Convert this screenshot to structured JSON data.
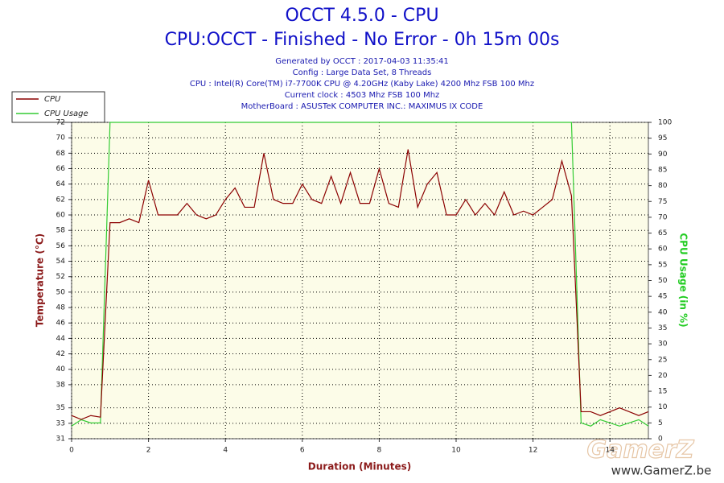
{
  "chart_data": {
    "type": "line",
    "title": "OCCT 4.5.0 - CPU",
    "subtitle": "CPU:OCCT - Finished - No Error - 0h 15m 00s",
    "info": [
      "Generated by OCCT : 2017-04-03 11:35:41",
      "Config : Large Data Set, 8 Threads",
      "CPU : Intel(R) Core(TM) i7-7700K CPU @ 4.20GHz (Kaby Lake) 4200 Mhz FSB 100 Mhz",
      "Current clock : 4503 Mhz FSB 100 Mhz",
      "MotherBoard : ASUSTeK COMPUTER INC.: MAXIMUS IX CODE"
    ],
    "xlabel": "Duration (Minutes)",
    "ylabel": "Temperature (°C)",
    "y2label": "CPU Usage (in %)",
    "watermark": [
      "GamerZ",
      "www.GamerZ.be"
    ],
    "x": [
      0,
      0.25,
      0.5,
      0.75,
      1,
      1.25,
      1.5,
      1.75,
      2,
      2.25,
      2.5,
      2.75,
      3,
      3.25,
      3.5,
      3.75,
      4,
      4.25,
      4.5,
      4.75,
      5,
      5.25,
      5.5,
      5.75,
      6,
      6.25,
      6.5,
      6.75,
      7,
      7.25,
      7.5,
      7.75,
      8,
      8.25,
      8.5,
      8.75,
      9,
      9.25,
      9.5,
      9.75,
      10,
      10.25,
      10.5,
      10.75,
      11,
      11.25,
      11.5,
      11.75,
      12,
      12.25,
      12.5,
      12.75,
      13,
      13.25,
      13.5,
      13.75,
      14,
      14.25,
      14.5,
      14.75,
      15
    ],
    "series": [
      {
        "name": "CPU",
        "color": "#8b0000",
        "values": [
          34,
          33.5,
          34,
          33.8,
          59,
          59,
          59.5,
          59,
          64.5,
          60,
          60,
          60,
          61.5,
          60,
          59.5,
          60,
          62,
          63.5,
          61,
          61,
          68,
          62,
          61.5,
          61.5,
          64,
          62,
          61.5,
          65,
          61.5,
          65.5,
          61.5,
          61.5,
          66,
          61.5,
          61,
          68.5,
          61,
          64,
          65.5,
          60,
          60,
          62,
          60,
          61.5,
          60,
          63,
          60,
          60.5,
          60,
          61,
          62,
          67,
          62.5,
          34.5,
          34.5,
          34,
          34.5,
          35,
          34.5,
          34,
          34.5
        ]
      },
      {
        "name": "CPU Usage",
        "color": "#33cc33",
        "axis": "y2",
        "values": [
          4,
          6,
          5,
          5,
          100,
          100,
          100,
          100,
          100,
          100,
          100,
          100,
          100,
          100,
          100,
          100,
          100,
          100,
          100,
          100,
          100,
          100,
          100,
          100,
          100,
          100,
          100,
          100,
          100,
          100,
          100,
          100,
          100,
          100,
          100,
          100,
          100,
          100,
          100,
          100,
          100,
          100,
          100,
          100,
          100,
          100,
          100,
          100,
          100,
          100,
          100,
          100,
          100,
          5,
          4,
          6,
          5,
          4,
          5,
          6,
          4
        ]
      }
    ],
    "xlim": [
      0,
      15
    ],
    "xticks": [
      0,
      2,
      4,
      6,
      8,
      10,
      12,
      14
    ],
    "ylim": [
      31,
      72
    ],
    "yticks": [
      31,
      33,
      35,
      38,
      40,
      42,
      44,
      46,
      48,
      50,
      52,
      54,
      56,
      58,
      60,
      62,
      64,
      66,
      68,
      70,
      72
    ],
    "y2lim": [
      0,
      100
    ],
    "y2ticks": [
      0,
      5,
      10,
      15,
      20,
      25,
      30,
      35,
      40,
      45,
      50,
      55,
      60,
      65,
      70,
      75,
      80,
      85,
      90,
      95,
      100
    ],
    "grid": true,
    "legend": "top-left"
  }
}
